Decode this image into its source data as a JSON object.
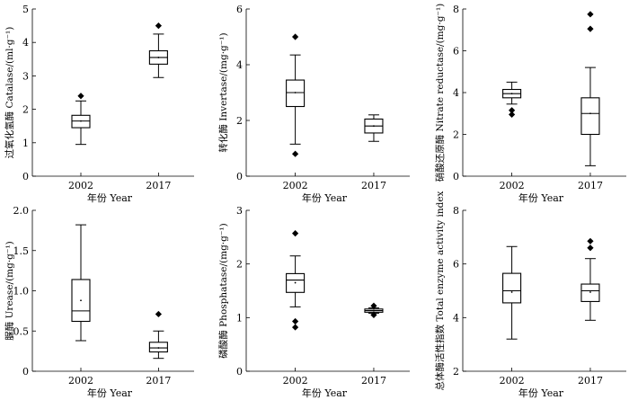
{
  "chart_data": [
    {
      "type": "boxplot",
      "ylabel": "过氧化氢酶 Catalase/(ml·g⁻¹)",
      "xlabel": "年份 Year",
      "ylim": [
        0,
        5
      ],
      "yticks": [
        0,
        1,
        2,
        3,
        4,
        5
      ],
      "categories": [
        "2002",
        "2017"
      ],
      "boxes": [
        {
          "min": 0.95,
          "q1": 1.45,
          "median": 1.65,
          "q3": 1.82,
          "max": 2.25,
          "mean": 1.65,
          "outliers": [
            2.4
          ]
        },
        {
          "min": 2.95,
          "q1": 3.35,
          "median": 3.55,
          "q3": 3.75,
          "max": 4.25,
          "mean": 3.55,
          "outliers": [
            4.5
          ]
        }
      ]
    },
    {
      "type": "boxplot",
      "ylabel": "转化酶 Invertase/(mg·g⁻¹)",
      "xlabel": "年份 Year",
      "ylim": [
        0,
        6
      ],
      "yticks": [
        0,
        2,
        4,
        6
      ],
      "categories": [
        "2002",
        "2017"
      ],
      "boxes": [
        {
          "min": 1.15,
          "q1": 2.5,
          "median": 3.0,
          "q3": 3.45,
          "max": 4.35,
          "mean": 3.0,
          "outliers": [
            5.0,
            0.8
          ]
        },
        {
          "min": 1.25,
          "q1": 1.55,
          "median": 1.8,
          "q3": 2.05,
          "max": 2.2,
          "mean": 1.8,
          "outliers": []
        }
      ]
    },
    {
      "type": "boxplot",
      "ylabel": "硝酸还原酶 Nitrate reductase/(mg·g⁻¹)",
      "xlabel": "年份 Year",
      "ylim": [
        0,
        8
      ],
      "yticks": [
        0,
        2,
        4,
        6,
        8
      ],
      "categories": [
        "2002",
        "2017"
      ],
      "boxes": [
        {
          "min": 3.45,
          "q1": 3.75,
          "median": 3.95,
          "q3": 4.15,
          "max": 4.5,
          "mean": 3.95,
          "outliers": [
            3.15,
            2.95
          ]
        },
        {
          "min": 0.5,
          "q1": 2.0,
          "median": 3.0,
          "q3": 3.75,
          "max": 5.2,
          "mean": 3.0,
          "outliers": [
            7.05,
            7.75
          ]
        }
      ]
    },
    {
      "type": "boxplot",
      "ylabel": "脲酶 Urease/(mg·g⁻¹)",
      "xlabel": "年份 Year",
      "ylim": [
        0,
        2.0
      ],
      "yticks": [
        0,
        0.5,
        1.0,
        1.5,
        2.0
      ],
      "ytick_labels": [
        "0",
        "0.5",
        "1.0",
        "1.5",
        "2.0"
      ],
      "categories": [
        "2002",
        "2017"
      ],
      "boxes": [
        {
          "min": 0.38,
          "q1": 0.62,
          "median": 0.75,
          "q3": 1.14,
          "max": 1.82,
          "mean": 0.88,
          "outliers": []
        },
        {
          "min": 0.16,
          "q1": 0.24,
          "median": 0.29,
          "q3": 0.36,
          "max": 0.5,
          "mean": 0.29,
          "outliers": [
            0.71
          ]
        }
      ]
    },
    {
      "type": "boxplot",
      "ylabel": "磷酸酶 Phosphatase/(mg·g⁻¹)",
      "xlabel": "年份 Year",
      "ylim": [
        0,
        3
      ],
      "yticks": [
        0,
        1,
        2,
        3
      ],
      "categories": [
        "2002",
        "2017"
      ],
      "boxes": [
        {
          "min": 1.2,
          "q1": 1.47,
          "median": 1.7,
          "q3": 1.82,
          "max": 2.15,
          "mean": 1.65,
          "outliers": [
            2.57,
            0.93,
            0.82
          ]
        },
        {
          "min": 1.08,
          "q1": 1.1,
          "median": 1.13,
          "q3": 1.16,
          "max": 1.18,
          "mean": 1.13,
          "outliers": [
            1.22,
            1.05
          ]
        }
      ]
    },
    {
      "type": "boxplot",
      "ylabel": "总体酶活性指数 Total enzyme activity index",
      "xlabel": "年份 Year",
      "ylim": [
        2,
        8
      ],
      "yticks": [
        2,
        4,
        6,
        8
      ],
      "categories": [
        "2002",
        "2017"
      ],
      "boxes": [
        {
          "min": 3.2,
          "q1": 4.55,
          "median": 5.0,
          "q3": 5.65,
          "max": 6.65,
          "mean": 4.95,
          "outliers": []
        },
        {
          "min": 3.9,
          "q1": 4.6,
          "median": 5.0,
          "q3": 5.25,
          "max": 6.2,
          "mean": 4.95,
          "outliers": [
            6.6,
            6.85
          ]
        }
      ]
    }
  ]
}
